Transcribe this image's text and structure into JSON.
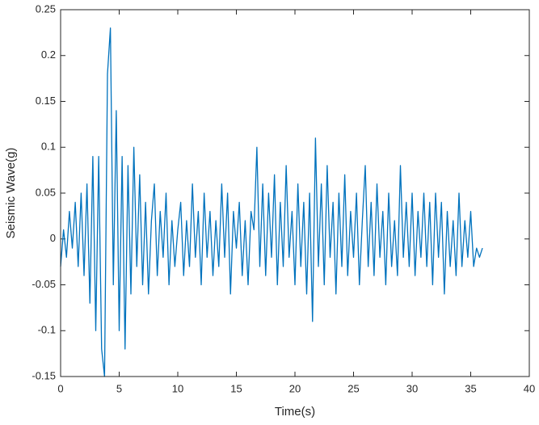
{
  "chart_data": {
    "type": "line",
    "xlabel": "Time(s)",
    "ylabel": "Seismic Wave(g)",
    "x": [
      0,
      0.25,
      0.5,
      0.75,
      1,
      1.25,
      1.5,
      1.75,
      2,
      2.25,
      2.5,
      2.75,
      3,
      3.25,
      3.5,
      3.75,
      4,
      4.25,
      4.5,
      4.75,
      5,
      5.25,
      5.5,
      5.75,
      6,
      6.25,
      6.5,
      6.75,
      7,
      7.25,
      7.5,
      7.75,
      8,
      8.25,
      8.5,
      8.75,
      9,
      9.25,
      9.5,
      9.75,
      10,
      10.25,
      10.5,
      10.75,
      11,
      11.25,
      11.5,
      11.75,
      12,
      12.25,
      12.5,
      12.75,
      13,
      13.25,
      13.5,
      13.75,
      14,
      14.25,
      14.5,
      14.75,
      15,
      15.25,
      15.5,
      15.75,
      16,
      16.25,
      16.5,
      16.75,
      17,
      17.25,
      17.5,
      17.75,
      18,
      18.25,
      18.5,
      18.75,
      19,
      19.25,
      19.5,
      19.75,
      20,
      20.25,
      20.5,
      20.75,
      21,
      21.25,
      21.5,
      21.75,
      22,
      22.25,
      22.5,
      22.75,
      23,
      23.25,
      23.5,
      23.75,
      24,
      24.25,
      24.5,
      24.75,
      25,
      25.25,
      25.5,
      25.75,
      26,
      26.25,
      26.5,
      26.75,
      27,
      27.25,
      27.5,
      27.75,
      28,
      28.25,
      28.5,
      28.75,
      29,
      29.25,
      29.5,
      29.75,
      30,
      30.25,
      30.5,
      30.75,
      31,
      31.25,
      31.5,
      31.75,
      32,
      32.25,
      32.5,
      32.75,
      33,
      33.25,
      33.5,
      33.75,
      34,
      34.25,
      34.5,
      34.75,
      35,
      35.25,
      35.5,
      35.75,
      36
    ],
    "values": [
      -0.03,
      0.01,
      -0.02,
      0.03,
      -0.01,
      0.04,
      -0.03,
      0.05,
      -0.04,
      0.06,
      -0.07,
      0.09,
      -0.1,
      0.09,
      -0.12,
      -0.15,
      0.18,
      0.23,
      -0.05,
      0.14,
      -0.1,
      0.09,
      -0.12,
      0.08,
      -0.06,
      0.1,
      -0.03,
      0.07,
      -0.05,
      0.04,
      -0.06,
      0.02,
      0.06,
      -0.04,
      0.03,
      -0.02,
      0.05,
      -0.05,
      0.02,
      -0.03,
      0.01,
      0.04,
      -0.04,
      0.02,
      -0.03,
      0.06,
      -0.02,
      0.03,
      -0.05,
      0.05,
      -0.02,
      0.03,
      -0.04,
      0.02,
      -0.03,
      0.06,
      -0.02,
      0.05,
      -0.06,
      0.03,
      -0.01,
      0.04,
      -0.04,
      0.02,
      -0.05,
      0.03,
      0.01,
      0.1,
      -0.03,
      0.06,
      -0.04,
      0.05,
      -0.02,
      0.07,
      -0.05,
      0.04,
      -0.03,
      0.08,
      -0.02,
      0.03,
      -0.05,
      0.06,
      -0.03,
      0.04,
      -0.06,
      0.05,
      -0.09,
      0.11,
      -0.03,
      0.06,
      -0.05,
      0.08,
      -0.02,
      0.04,
      -0.06,
      0.05,
      -0.03,
      0.07,
      -0.04,
      0.03,
      -0.02,
      0.05,
      -0.05,
      0.02,
      0.08,
      -0.03,
      0.04,
      -0.04,
      0.06,
      -0.02,
      0.03,
      -0.05,
      0.05,
      -0.03,
      0.02,
      -0.04,
      0.08,
      -0.02,
      0.04,
      -0.03,
      0.05,
      -0.04,
      0.03,
      -0.02,
      0.05,
      -0.03,
      0.04,
      -0.05,
      0.05,
      -0.02,
      0.04,
      -0.06,
      0.03,
      -0.03,
      0.02,
      -0.04,
      0.05,
      -0.03,
      0.02,
      -0.02,
      0.03,
      -0.03,
      -0.01,
      -0.02,
      -0.01
    ],
    "color": "#0072bd",
    "xlim": [
      0,
      40
    ],
    "xticks": [
      0,
      5,
      10,
      15,
      20,
      25,
      30,
      35,
      40
    ],
    "ylim": [
      -0.15,
      0.25
    ],
    "yticks": [
      -0.15,
      -0.1,
      -0.05,
      0,
      0.05,
      0.1,
      0.15,
      0.2,
      0.25
    ],
    "grid": false
  }
}
